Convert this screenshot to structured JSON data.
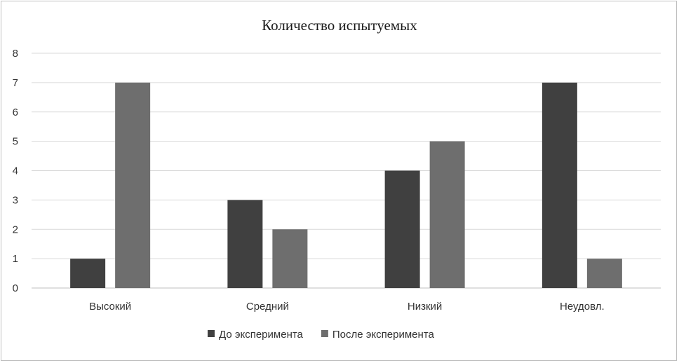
{
  "chart_data": {
    "type": "bar",
    "title": "Количество испытуемых",
    "categories": [
      "Высокий",
      "Средний",
      "Низкий",
      "Неудовл."
    ],
    "series": [
      {
        "name": "До эксперимента",
        "values": [
          1,
          3,
          4,
          7
        ],
        "color": "#404040"
      },
      {
        "name": "После эксперимента",
        "values": [
          7,
          2,
          5,
          1
        ],
        "color": "#6e6e6e"
      }
    ],
    "ylim": [
      0,
      8
    ],
    "yticks": [
      0,
      1,
      2,
      3,
      4,
      5,
      6,
      7,
      8
    ],
    "grid": true,
    "legend_position": "bottom"
  }
}
